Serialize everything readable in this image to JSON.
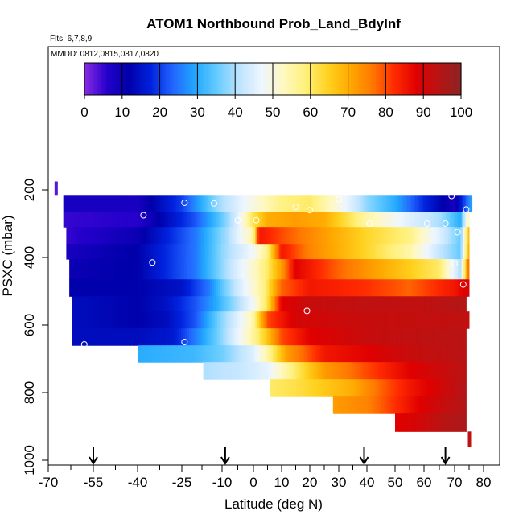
{
  "chart_data": {
    "type": "heatmap",
    "title": "ATOM1 Northbound Prob_Land_BdyInf",
    "subtitle_flights": "Flts: 6,7,8,9",
    "subtitle_dates": "MMDD: 0812,0815,0817,0820",
    "xlabel": "Latitude (deg N)",
    "ylabel": "PSXC (mbar)",
    "x_ticks": [
      "-70",
      "-55",
      "-40",
      "-25",
      "-10",
      "0",
      "10",
      "20",
      "30",
      "40",
      "50",
      "60",
      "70",
      "80"
    ],
    "y_ticks": [
      "200",
      "400",
      "600",
      "800",
      "1000"
    ],
    "y_reversed": true,
    "colorbar": {
      "ticks": [
        "0",
        "10",
        "20",
        "30",
        "40",
        "50",
        "60",
        "70",
        "80",
        "90",
        "100"
      ],
      "colors": [
        "#8a2be2",
        "#2600cc",
        "#0000aa",
        "#0022dd",
        "#2266ff",
        "#22a8ff",
        "#66ccff",
        "#bfe4ff",
        "#eef6ff",
        "#fff8c0",
        "#fff07a",
        "#ffd21f",
        "#ffa800",
        "#ff7800",
        "#ff2a00",
        "#e00000",
        "#b81414",
        "#8c2424"
      ]
    },
    "arrow_latitudes": [
      -55,
      -9,
      39,
      67
    ],
    "value_encoding": "percent probability (0-100) per latitude bin x pressure layer",
    "rows": [
      {
        "p_top": 215,
        "p_bot": 265,
        "lat_start": -65,
        "lat_end": 76,
        "lats": [
          -65,
          -40,
          -25,
          -12,
          0,
          10,
          20,
          30,
          40,
          50,
          60,
          70,
          76
        ],
        "values": [
          8,
          8,
          20,
          38,
          50,
          58,
          60,
          50,
          38,
          30,
          18,
          8,
          30
        ]
      },
      {
        "p_top": 265,
        "p_bot": 310,
        "lat_start": -65,
        "lat_end": 75,
        "lats": [
          -65,
          -40,
          -20,
          -10,
          -5,
          0,
          5,
          15,
          25,
          40,
          55,
          65,
          72,
          75
        ],
        "values": [
          5,
          6,
          22,
          35,
          45,
          62,
          70,
          72,
          70,
          55,
          45,
          40,
          30,
          55
        ]
      },
      {
        "p_top": 310,
        "p_bot": 360,
        "lat_start": -64,
        "lat_end": 75,
        "lats": [
          -64,
          -40,
          -20,
          -8,
          0,
          2,
          10,
          25,
          40,
          55,
          65,
          72,
          75
        ],
        "values": [
          5,
          10,
          25,
          40,
          55,
          85,
          80,
          72,
          64,
          58,
          45,
          35,
          70
        ]
      },
      {
        "p_top": 360,
        "p_bot": 405,
        "lat_start": -64,
        "lat_end": 75,
        "lats": [
          -64,
          -40,
          -20,
          -10,
          0,
          5,
          10,
          20,
          40,
          55,
          65,
          72,
          75
        ],
        "values": [
          8,
          12,
          25,
          38,
          48,
          58,
          85,
          75,
          64,
          55,
          42,
          35,
          72
        ]
      },
      {
        "p_top": 405,
        "p_bot": 465,
        "lat_start": -63,
        "lat_end": 75,
        "lats": [
          -63,
          -40,
          -20,
          -10,
          -5,
          0,
          5,
          10,
          15,
          30,
          50,
          65,
          72,
          75
        ],
        "values": [
          10,
          12,
          25,
          38,
          45,
          52,
          60,
          72,
          88,
          78,
          68,
          60,
          40,
          80
        ]
      },
      {
        "p_top": 465,
        "p_bot": 515,
        "lat_start": -63,
        "lat_end": 75,
        "lats": [
          -63,
          -40,
          -25,
          -15,
          -8,
          -2,
          4,
          10,
          20,
          40,
          55,
          70,
          75
        ],
        "values": [
          12,
          12,
          15,
          25,
          38,
          48,
          58,
          78,
          85,
          82,
          78,
          85,
          90
        ]
      },
      {
        "p_top": 515,
        "p_bot": 560,
        "lat_start": -62,
        "lat_end": 74,
        "lats": [
          -62,
          -40,
          -30,
          -20,
          -12,
          -5,
          0,
          5,
          10,
          20,
          40,
          60,
          74
        ],
        "values": [
          14,
          12,
          15,
          22,
          30,
          40,
          48,
          62,
          88,
          92,
          93,
          93,
          95
        ]
      },
      {
        "p_top": 560,
        "p_bot": 610,
        "lat_start": -62,
        "lat_end": 75,
        "lats": [
          -62,
          -40,
          -30,
          -20,
          -12,
          -5,
          0,
          5,
          15,
          40,
          75
        ],
        "values": [
          14,
          12,
          14,
          22,
          35,
          45,
          55,
          80,
          90,
          92,
          93
        ]
      },
      {
        "p_top": 610,
        "p_bot": 660,
        "lat_start": -62,
        "lat_end": 74,
        "lats": [
          -62,
          -40,
          -28,
          -18,
          -10,
          -3,
          3,
          10,
          20,
          40,
          74
        ],
        "values": [
          14,
          14,
          16,
          28,
          38,
          50,
          62,
          80,
          88,
          92,
          94
        ]
      },
      {
        "p_top": 660,
        "p_bot": 710,
        "lat_start": -40,
        "lat_end": 74,
        "lats": [
          -40,
          -20,
          -10,
          0,
          5,
          12,
          25,
          40,
          55,
          74
        ],
        "values": [
          30,
          32,
          36,
          45,
          55,
          72,
          85,
          88,
          92,
          94
        ]
      },
      {
        "p_top": 710,
        "p_bot": 760,
        "lat_start": -17,
        "lat_end": 74,
        "lats": [
          -17,
          -5,
          5,
          15,
          25,
          40,
          55,
          74
        ],
        "values": [
          40,
          42,
          46,
          60,
          72,
          80,
          88,
          94
        ]
      },
      {
        "p_top": 760,
        "p_bot": 810,
        "lat_start": 6,
        "lat_end": 74,
        "lats": [
          6,
          15,
          25,
          35,
          45,
          55,
          65,
          74
        ],
        "values": [
          60,
          62,
          66,
          70,
          78,
          85,
          90,
          95
        ]
      },
      {
        "p_top": 810,
        "p_bot": 860,
        "lat_start": 28,
        "lat_end": 74,
        "lats": [
          28,
          40,
          50,
          58,
          66,
          74
        ],
        "values": [
          72,
          75,
          82,
          88,
          92,
          95
        ]
      },
      {
        "p_top": 860,
        "p_bot": 915,
        "lat_start": 50,
        "lat_end": 74,
        "lats": [
          50,
          58,
          66,
          74
        ],
        "values": [
          88,
          90,
          94,
          96
        ]
      }
    ],
    "edge_marks": [
      {
        "lat": -67.5,
        "p_top": 175,
        "p_bot": 215,
        "value": 3
      },
      {
        "lat": 75,
        "p_top": 915,
        "p_bot": 960,
        "value": 93
      }
    ],
    "points": [
      {
        "lat": -24,
        "p": 238
      },
      {
        "lat": -13,
        "p": 240
      },
      {
        "lat": 20,
        "p": 260
      },
      {
        "lat": 15,
        "p": 250
      },
      {
        "lat": 30,
        "p": 228
      },
      {
        "lat": 69,
        "p": 218
      },
      {
        "lat": 74,
        "p": 258
      },
      {
        "lat": -38,
        "p": 275
      },
      {
        "lat": -5,
        "p": 290
      },
      {
        "lat": 1,
        "p": 290
      },
      {
        "lat": 41,
        "p": 300
      },
      {
        "lat": 61,
        "p": 300
      },
      {
        "lat": 67,
        "p": 300
      },
      {
        "lat": 71,
        "p": 325
      },
      {
        "lat": -35,
        "p": 415
      },
      {
        "lat": 70,
        "p": 418
      },
      {
        "lat": 73,
        "p": 480
      },
      {
        "lat": 19,
        "p": 558
      },
      {
        "lat": -24,
        "p": 650
      },
      {
        "lat": -58,
        "p": 657
      }
    ]
  }
}
